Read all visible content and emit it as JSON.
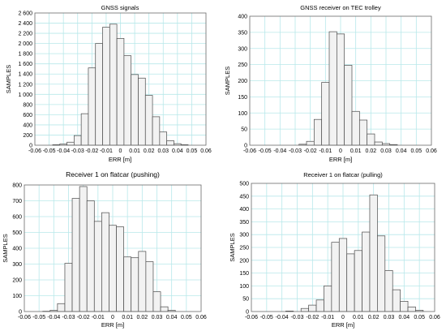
{
  "chart_data": [
    {
      "type": "bar",
      "title": "GNSS signals",
      "xlabel": "ERR [m]",
      "ylabel": "SAMPLES",
      "xlim": [
        -0.06,
        0.06
      ],
      "ylim": [
        0,
        2600
      ],
      "bin_width": 0.005,
      "xticks": [
        "-0.06",
        "-0.05",
        "-0.04",
        "-0.03",
        "-0.02",
        "-0.01",
        "0",
        "0.01",
        "0.02",
        "0.03",
        "0.04",
        "0.05",
        "0.06"
      ],
      "yticks": [
        "0",
        "200",
        "400",
        "600",
        "800",
        "1 000",
        "1 200",
        "1 400",
        "1 600",
        "1 800",
        "2 000",
        "2 200",
        "2 400",
        "2 600"
      ],
      "grid": true,
      "bins": [
        {
          "x": -0.045,
          "y": 10
        },
        {
          "x": -0.04,
          "y": 25
        },
        {
          "x": -0.035,
          "y": 60
        },
        {
          "x": -0.03,
          "y": 190
        },
        {
          "x": -0.025,
          "y": 620
        },
        {
          "x": -0.02,
          "y": 1520
        },
        {
          "x": -0.015,
          "y": 2000
        },
        {
          "x": -0.01,
          "y": 2320
        },
        {
          "x": -0.005,
          "y": 2380
        },
        {
          "x": 0,
          "y": 2100
        },
        {
          "x": 0.005,
          "y": 1760
        },
        {
          "x": 0.01,
          "y": 1390
        },
        {
          "x": 0.015,
          "y": 1320
        },
        {
          "x": 0.02,
          "y": 980
        },
        {
          "x": 0.025,
          "y": 560
        },
        {
          "x": 0.03,
          "y": 260
        },
        {
          "x": 0.035,
          "y": 90
        },
        {
          "x": 0.04,
          "y": 30
        },
        {
          "x": 0.045,
          "y": 10
        }
      ]
    },
    {
      "type": "bar",
      "title": "GNSS receiver on TEC trolley",
      "xlabel": "ERR [m]",
      "ylabel": "SAMPLES",
      "xlim": [
        -0.06,
        0.06
      ],
      "ylim": [
        0,
        400
      ],
      "bin_width": 0.005,
      "xticks": [
        "-0.06",
        "-0.05",
        "-0.04",
        "-0.03",
        "-0.02",
        "-0.01",
        "0",
        "0.01",
        "0.02",
        "0.03",
        "0.04",
        "0.05",
        "0.06"
      ],
      "yticks": [
        "0",
        "50",
        "100",
        "150",
        "200",
        "250",
        "300",
        "350",
        "400"
      ],
      "grid": true,
      "bins": [
        {
          "x": -0.025,
          "y": 3
        },
        {
          "x": -0.02,
          "y": 12
        },
        {
          "x": -0.015,
          "y": 80
        },
        {
          "x": -0.01,
          "y": 195
        },
        {
          "x": -0.005,
          "y": 352
        },
        {
          "x": 0,
          "y": 345
        },
        {
          "x": 0.005,
          "y": 248
        },
        {
          "x": 0.01,
          "y": 105
        },
        {
          "x": 0.015,
          "y": 78
        },
        {
          "x": 0.02,
          "y": 35
        },
        {
          "x": 0.025,
          "y": 10
        },
        {
          "x": 0.03,
          "y": 5
        },
        {
          "x": 0.035,
          "y": 2
        }
      ]
    },
    {
      "type": "bar",
      "title": "Receiver 1 on flatcar (pushing)",
      "xlabel": "ERR [m]",
      "ylabel": "SAMPLES",
      "xlim": [
        -0.06,
        0.06
      ],
      "ylim": [
        0,
        800
      ],
      "bin_width": 0.005,
      "xticks": [
        "-0.06",
        "-0.05",
        "-0.04",
        "-0.03",
        "-0.02",
        "-0.01",
        "0",
        "0.01",
        "0.02",
        "0.03",
        "0.04",
        "0.05",
        "0.06"
      ],
      "yticks": [
        "0",
        "100",
        "200",
        "300",
        "400",
        "500",
        "600",
        "700",
        "800"
      ],
      "grid": true,
      "bins": [
        {
          "x": -0.045,
          "y": 2
        },
        {
          "x": -0.04,
          "y": 8
        },
        {
          "x": -0.035,
          "y": 50
        },
        {
          "x": -0.03,
          "y": 305
        },
        {
          "x": -0.025,
          "y": 715
        },
        {
          "x": -0.02,
          "y": 790
        },
        {
          "x": -0.015,
          "y": 700
        },
        {
          "x": -0.01,
          "y": 570
        },
        {
          "x": -0.005,
          "y": 625
        },
        {
          "x": 0,
          "y": 545
        },
        {
          "x": 0.005,
          "y": 535
        },
        {
          "x": 0.01,
          "y": 345
        },
        {
          "x": 0.015,
          "y": 340
        },
        {
          "x": 0.02,
          "y": 380
        },
        {
          "x": 0.025,
          "y": 315
        },
        {
          "x": 0.03,
          "y": 125
        },
        {
          "x": 0.035,
          "y": 30
        },
        {
          "x": 0.04,
          "y": 8
        }
      ]
    },
    {
      "type": "bar",
      "title": "Receiver 1 on flatcar (pulling)",
      "xlabel": "ERR [m]",
      "ylabel": "SAMPLES",
      "xlim": [
        -0.06,
        0.06
      ],
      "ylim": [
        0,
        500
      ],
      "bin_width": 0.005,
      "xticks": [
        "-0.06",
        "-0.05",
        "-0.04",
        "-0.03",
        "-0.02",
        "-0.01",
        "0",
        "0.01",
        "0.02",
        "0.03",
        "0.04",
        "0.05",
        "0.06"
      ],
      "yticks": [
        "0",
        "50",
        "100",
        "150",
        "200",
        "250",
        "300",
        "350",
        "400",
        "450",
        "500"
      ],
      "grid": true,
      "bins": [
        {
          "x": -0.035,
          "y": 2
        },
        {
          "x": -0.025,
          "y": 12
        },
        {
          "x": -0.02,
          "y": 25
        },
        {
          "x": -0.015,
          "y": 45
        },
        {
          "x": -0.01,
          "y": 100
        },
        {
          "x": -0.005,
          "y": 270
        },
        {
          "x": 0,
          "y": 285
        },
        {
          "x": 0.005,
          "y": 225
        },
        {
          "x": 0.01,
          "y": 238
        },
        {
          "x": 0.015,
          "y": 310
        },
        {
          "x": 0.02,
          "y": 455
        },
        {
          "x": 0.025,
          "y": 295
        },
        {
          "x": 0.03,
          "y": 160
        },
        {
          "x": 0.035,
          "y": 85
        },
        {
          "x": 0.04,
          "y": 40
        },
        {
          "x": 0.045,
          "y": 18
        },
        {
          "x": 0.05,
          "y": 5
        }
      ]
    }
  ]
}
